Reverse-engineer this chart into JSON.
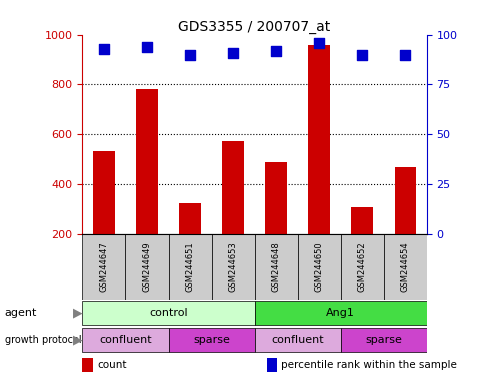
{
  "title": "GDS3355 / 200707_at",
  "samples": [
    "GSM244647",
    "GSM244649",
    "GSM244651",
    "GSM244653",
    "GSM244648",
    "GSM244650",
    "GSM244652",
    "GSM244654"
  ],
  "count_values": [
    535,
    780,
    325,
    575,
    490,
    960,
    310,
    468
  ],
  "percentile_values": [
    93,
    94,
    90,
    91,
    92,
    96,
    90,
    90
  ],
  "ylim_left": [
    200,
    1000
  ],
  "ylim_right": [
    0,
    100
  ],
  "yticks_left": [
    200,
    400,
    600,
    800,
    1000
  ],
  "yticks_right": [
    0,
    25,
    50,
    75,
    100
  ],
  "bar_color": "#cc0000",
  "dot_color": "#0000cc",
  "grid_color": "#000000",
  "agent_labels": [
    {
      "text": "control",
      "start": 0,
      "end": 4,
      "color": "#ccffcc"
    },
    {
      "text": "Ang1",
      "start": 4,
      "end": 8,
      "color": "#44dd44"
    }
  ],
  "growth_labels": [
    {
      "text": "confluent",
      "start": 0,
      "end": 2,
      "color": "#ddaadd"
    },
    {
      "text": "sparse",
      "start": 2,
      "end": 4,
      "color": "#cc44cc"
    },
    {
      "text": "confluent",
      "start": 4,
      "end": 6,
      "color": "#ddaadd"
    },
    {
      "text": "sparse",
      "start": 6,
      "end": 8,
      "color": "#cc44cc"
    }
  ],
  "left_color": "#cc0000",
  "right_color": "#0000cc",
  "legend_items": [
    {
      "color": "#cc0000",
      "label": "count"
    },
    {
      "color": "#0000cc",
      "label": "percentile rank within the sample"
    }
  ],
  "sample_box_color": "#cccccc",
  "bar_width": 0.5,
  "dot_size": 45,
  "grid_dotted_at": [
    400,
    600,
    800
  ]
}
